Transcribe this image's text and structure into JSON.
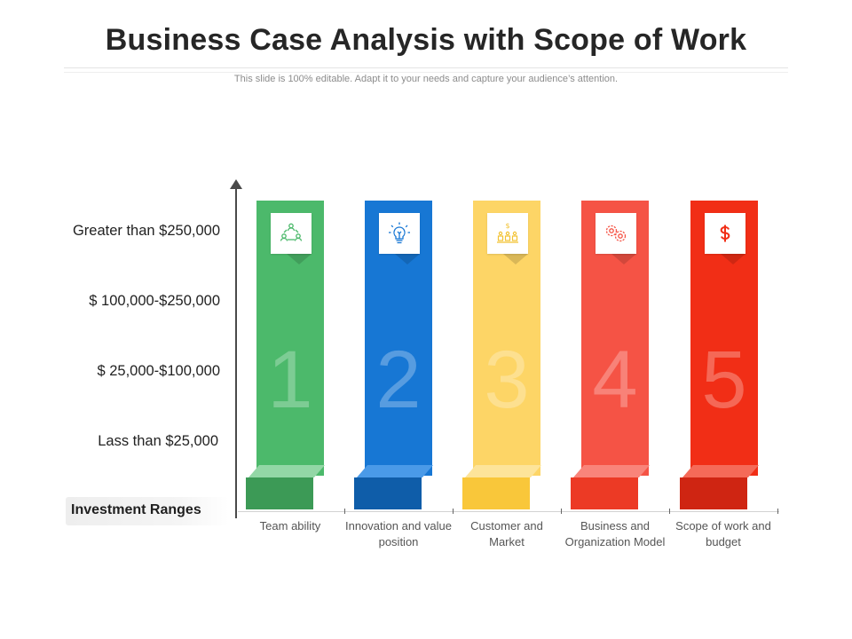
{
  "header": {
    "title": "Business Case Analysis with Scope of Work",
    "subtitle": "This slide is 100% editable. Adapt it to your needs and capture your audience’s attention."
  },
  "axis": {
    "levels": [
      "Greater than $250,000",
      "$ 100,000-$250,000",
      "$ 25,000-$100,000",
      "Lass than $25,000"
    ],
    "label": "Investment Ranges"
  },
  "columns": [
    {
      "number": "1",
      "caption_line1": "Team ability",
      "caption_line2": "",
      "icon": "team-network-icon",
      "color": "#4cb96b",
      "base_color": "#3c9a56",
      "top_color": "#93d7a6"
    },
    {
      "number": "2",
      "caption_line1": "Innovation and value",
      "caption_line2": "position",
      "icon": "lightbulb-icon",
      "color": "#1777d4",
      "base_color": "#0f5da9",
      "top_color": "#4a9ae8"
    },
    {
      "number": "3",
      "caption_line1": "Customer and",
      "caption_line2": "Market",
      "icon": "customer-market-icon",
      "color": "#fdd566",
      "base_color": "#f9c73a",
      "top_color": "#fde49a"
    },
    {
      "number": "4",
      "caption_line1": "Business and",
      "caption_line2": "Organization Model",
      "icon": "gears-icon",
      "color": "#f55345",
      "base_color": "#ec3a25",
      "top_color": "#f9847a"
    },
    {
      "number": "5",
      "caption_line1": "Scope of work and",
      "caption_line2": "budget",
      "icon": "dollar-icon",
      "color": "#f12e16",
      "base_color": "#cf2512",
      "top_color": "#f56a58"
    }
  ]
}
